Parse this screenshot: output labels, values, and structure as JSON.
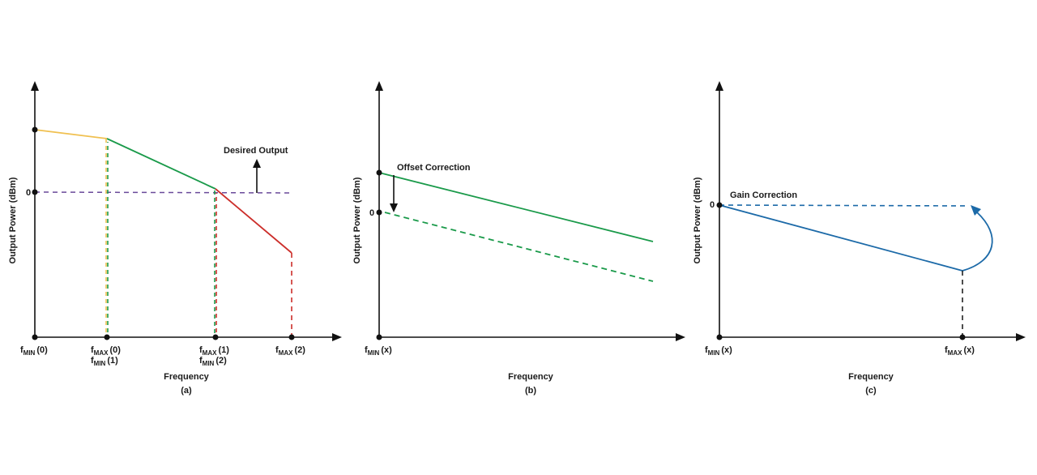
{
  "colors": {
    "axis": "#111111",
    "yellow": "#f0c050",
    "green": "#1a9a4a",
    "red": "#cc2e2a",
    "purple": "#6a4a9a",
    "blue": "#1c6aa8",
    "black_dash": "#222222"
  },
  "panels": [
    {
      "caption": "(a)",
      "xlabel": "Frequency",
      "ylabel": "Output Power (dBm)",
      "zero_label": "0",
      "annotation": "Desired Output",
      "ticks": [
        {
          "lines": [
            {
              "f": "f",
              "sub": "MIN",
              "arg": "(0)"
            }
          ]
        },
        {
          "lines": [
            {
              "f": "f",
              "sub": "MAX",
              "arg": "(0)"
            },
            {
              "f": "f",
              "sub": "MIN",
              "arg": "(1)"
            }
          ]
        },
        {
          "lines": [
            {
              "f": "f",
              "sub": "MAX",
              "arg": "(1)"
            },
            {
              "f": "f",
              "sub": "MIN",
              "arg": "(2)"
            }
          ]
        },
        {
          "lines": [
            {
              "f": "f",
              "sub": "MAX",
              "arg": "(2)"
            }
          ]
        }
      ]
    },
    {
      "caption": "(b)",
      "xlabel": "Frequency",
      "ylabel": "Output Power (dBm)",
      "zero_label": "0",
      "annotation": "Offset Correction",
      "ticks": [
        {
          "lines": [
            {
              "f": "f",
              "sub": "MIN",
              "arg": "(x)"
            }
          ]
        }
      ]
    },
    {
      "caption": "(c)",
      "xlabel": "Frequency",
      "ylabel": "Output Power (dBm)",
      "zero_label": "0",
      "annotation": "Gain Correction",
      "ticks": [
        {
          "lines": [
            {
              "f": "f",
              "sub": "MIN",
              "arg": "(x)"
            }
          ]
        },
        {
          "lines": [
            {
              "f": "f",
              "sub": "MAX",
              "arg": "(x)"
            }
          ]
        }
      ]
    }
  ]
}
